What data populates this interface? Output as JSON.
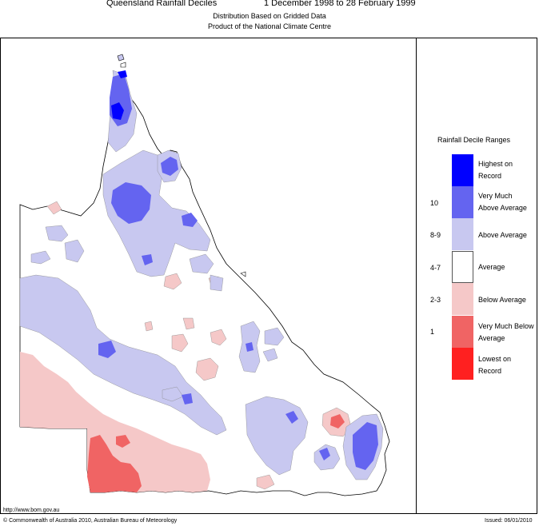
{
  "header": {
    "title": "Queensland Rainfall Deciles",
    "period": "1 December 1998 to 28 February 1999",
    "subtitle1": "Distribution Based on Gridded Data",
    "subtitle2": "Product of the National Climate Centre"
  },
  "legend": {
    "title": "Rainfall Decile Ranges",
    "entries": [
      {
        "label": "Highest on Record",
        "decile": "",
        "color": "#0000ff"
      },
      {
        "label": "Very Much Above Average",
        "decile": "10",
        "color": "#6464f0"
      },
      {
        "label": "Above Average",
        "decile": "8-9",
        "color": "#c8c8f0"
      },
      {
        "label": "Average",
        "decile": "4-7",
        "color": "#ffffff"
      },
      {
        "label": "Below Average",
        "decile": "2-3",
        "color": "#f5c8c8"
      },
      {
        "label": "Very Much Below Average",
        "decile": "1",
        "color": "#f06464"
      },
      {
        "label": "Lowest on Record",
        "decile": "",
        "color": "#ff2020"
      }
    ]
  },
  "footer": {
    "url": "http://www.bom.gov.au",
    "copyright": "© Commonwealth of Australia 2010, Australian Bureau of Meteorology",
    "issued": "Issued: 06/01/2010"
  }
}
